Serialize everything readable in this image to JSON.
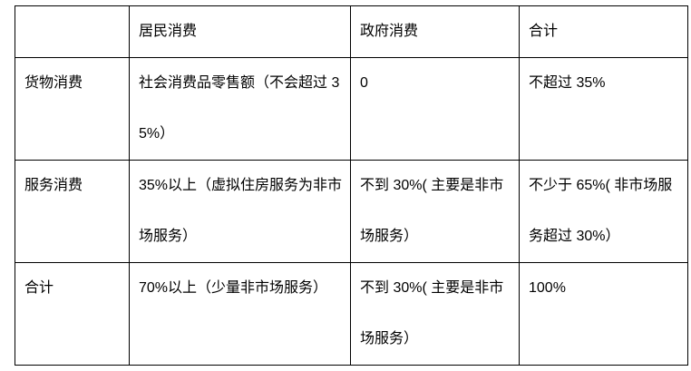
{
  "table": {
    "headers": [
      "",
      "居民消费",
      "政府消费",
      "合计"
    ],
    "rows": [
      [
        "货物消费",
        "社会消费品零售额（不会超过 35%）",
        "0",
        "不超过 35%"
      ],
      [
        "服务消费",
        "35%以上（虚拟住房服务为非市场服务）",
        "不到 30%( 主要是非市场服务）",
        "不少于 65%( 非市场服务超过 30%）"
      ],
      [
        "合计",
        "70%以上（少量非市场服务）",
        "不到 30%( 主要是非市场服务）",
        "100%"
      ]
    ]
  }
}
